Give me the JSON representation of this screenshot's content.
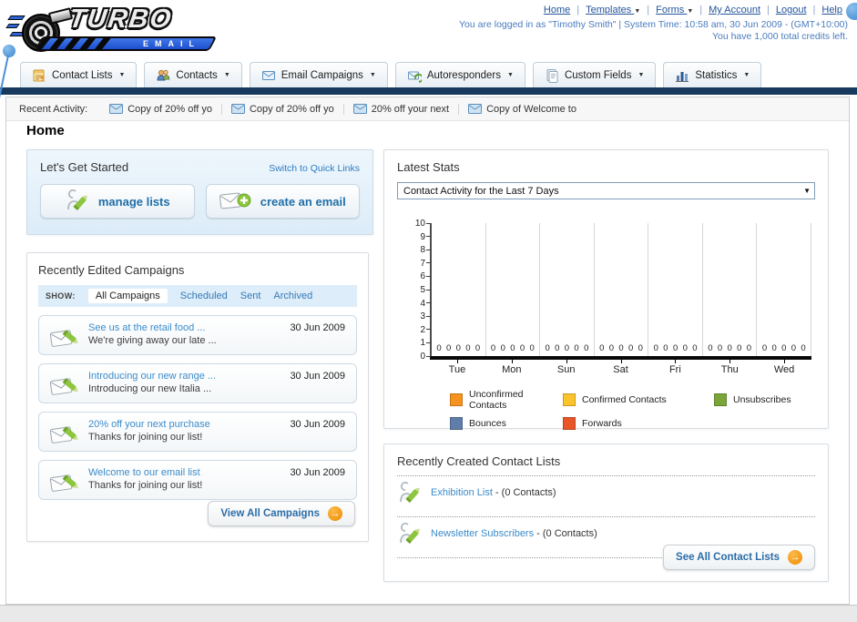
{
  "header": {
    "logo_title": "TURBO",
    "logo_subtitle": "EMAIL",
    "nav_links": [
      {
        "label": "Home",
        "dropdown": false
      },
      {
        "label": "Templates",
        "dropdown": true
      },
      {
        "label": "Forms",
        "dropdown": true
      },
      {
        "label": "My Account",
        "dropdown": false
      },
      {
        "label": "Logout",
        "dropdown": false
      },
      {
        "label": "Help",
        "dropdown": false
      }
    ],
    "login_line": "You are logged in as \"Timothy Smith\" | System Time: 10:58 am, 30 Jun 2009 - (GMT+10:00)",
    "credits_line": "You have 1,000 total credits left."
  },
  "nav_tabs": [
    {
      "label": "Contact Lists",
      "icon": "contact-lists-icon"
    },
    {
      "label": "Contacts",
      "icon": "contacts-icon"
    },
    {
      "label": "Email Campaigns",
      "icon": "email-campaigns-icon"
    },
    {
      "label": "Autoresponders",
      "icon": "autoresponders-icon"
    },
    {
      "label": "Custom Fields",
      "icon": "custom-fields-icon"
    },
    {
      "label": "Statistics",
      "icon": "statistics-icon"
    }
  ],
  "recent_activity": {
    "label": "Recent Activity:",
    "items": [
      "Copy of 20% off yo",
      "Copy of 20% off yo",
      "20% off your next",
      "Copy of Welcome to"
    ]
  },
  "page_title": "Home",
  "get_started": {
    "title": "Let's Get Started",
    "switch_link": "Switch to Quick Links",
    "manage_lists_label": "manage lists",
    "create_email_label": "create an email"
  },
  "campaigns": {
    "title": "Recently Edited Campaigns",
    "show_label": "SHOW:",
    "filters": [
      {
        "label": "All Campaigns",
        "active": true
      },
      {
        "label": "Scheduled",
        "active": false
      },
      {
        "label": "Sent",
        "active": false
      },
      {
        "label": "Archived",
        "active": false
      }
    ],
    "items": [
      {
        "title": "See us at the retail food ...",
        "subtitle": "We're giving away our late ...",
        "date": "30 Jun 2009"
      },
      {
        "title": "Introducing our new range ...",
        "subtitle": "Introducing our new Italia ...",
        "date": "30 Jun 2009"
      },
      {
        "title": "20% off your next purchase",
        "subtitle": "Thanks for joining our list!",
        "date": "30 Jun 2009"
      },
      {
        "title": "Welcome to our email list",
        "subtitle": "Thanks for joining our list!",
        "date": "30 Jun 2009"
      }
    ],
    "view_all_label": "View All Campaigns"
  },
  "stats": {
    "title": "Latest Stats",
    "dropdown_value": "Contact Activity for the Last 7 Days"
  },
  "chart_data": {
    "type": "bar",
    "title": "Contact Activity for the Last 7 Days",
    "categories": [
      "Tue",
      "Mon",
      "Sun",
      "Sat",
      "Fri",
      "Thu",
      "Wed"
    ],
    "series": [
      {
        "name": "Unconfirmed Contacts",
        "color": "#F6921E",
        "values": [
          0,
          0,
          0,
          0,
          0,
          0,
          0
        ]
      },
      {
        "name": "Confirmed Contacts",
        "color": "#FBC32C",
        "values": [
          0,
          0,
          0,
          0,
          0,
          0,
          0
        ]
      },
      {
        "name": "Unsubscribes",
        "color": "#79A539",
        "values": [
          0,
          0,
          0,
          0,
          0,
          0,
          0
        ]
      },
      {
        "name": "Bounces",
        "color": "#5F7DA9",
        "values": [
          0,
          0,
          0,
          0,
          0,
          0,
          0
        ]
      },
      {
        "name": "Forwards",
        "color": "#E85529",
        "values": [
          0,
          0,
          0,
          0,
          0,
          0,
          0
        ]
      }
    ],
    "ylim": [
      0,
      10
    ],
    "yticks": [
      0,
      1,
      2,
      3,
      4,
      5,
      6,
      7,
      8,
      9,
      10
    ],
    "grid": "vertical",
    "legend_position": "bottom"
  },
  "contact_lists": {
    "title": "Recently Created Contact Lists",
    "items": [
      {
        "name": "Exhibition List",
        "suffix": " - (0 Contacts)"
      },
      {
        "name": "Newsletter Subscribers",
        "suffix": " - (0 Contacts)"
      }
    ],
    "see_all_label": "See All Contact Lists"
  }
}
